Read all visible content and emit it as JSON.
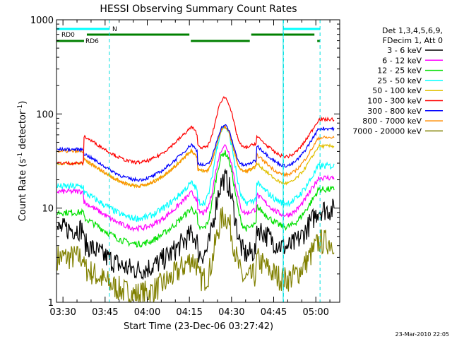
{
  "chart_data": {
    "type": "line",
    "title": "HESSI Observing Summary Count Rates",
    "xlabel": "Start Time (23-Dec-06 03:27:42)",
    "ylabel_main": "Count Rate (s",
    "ylabel_sup1": "-1",
    "ylabel_mid": " detector",
    "ylabel_sup2": "-1",
    "ylabel_end": ")",
    "y_scale": "log",
    "ylim": [
      1,
      1000
    ],
    "xlim_minutes": [
      27.7,
      101
    ],
    "x_ticks": [
      {
        "label": "03:30",
        "minute": 30
      },
      {
        "label": "03:45",
        "minute": 45
      },
      {
        "label": "04:00",
        "minute": 60
      },
      {
        "label": "04:15",
        "minute": 75
      },
      {
        "label": "04:30",
        "minute": 90
      },
      {
        "label": "04:45",
        "minute": 105
      },
      {
        "label": "05:00",
        "minute": 120
      }
    ],
    "y_ticks": [
      {
        "label": "1",
        "value": 1
      },
      {
        "label": "10",
        "value": 10
      },
      {
        "label": "100",
        "value": 100
      },
      {
        "label": "1000",
        "value": 1000
      }
    ],
    "legend": {
      "placement": "right",
      "header": [
        "Det 1,3,4,5,6,9,",
        "FDecim 1, Att 0"
      ],
      "entries": [
        {
          "label": "3 - 6 keV",
          "color": "#000000"
        },
        {
          "label": "6 - 12 keV",
          "color": "#ff00ff"
        },
        {
          "label": "12 - 25 keV",
          "color": "#00e000"
        },
        {
          "label": "25 - 50 keV",
          "color": "#00ffff"
        },
        {
          "label": "50 - 100 keV",
          "color": "#e0c000"
        },
        {
          "label": "100 - 300 keV",
          "color": "#ff0000"
        },
        {
          "label": "300 - 800 keV",
          "color": "#0000ff"
        },
        {
          "label": "800 - 7000 keV",
          "color": "#ff8c00"
        },
        {
          "label": "7000 - 20000 keV",
          "color": "#808000"
        }
      ]
    },
    "flags": [
      {
        "label": "N",
        "color": "#00ffff",
        "segments": [
          [
            27.7,
            46.5
          ],
          [
            108.5,
            121.5
          ]
        ]
      },
      {
        "label": "RD0",
        "color": "#008000",
        "segments": [
          [
            38.5,
            75
          ],
          [
            97,
            119.5
          ]
        ]
      },
      {
        "label": "RD6",
        "color": "#008000",
        "segments": [
          [
            27.7,
            37.5
          ],
          [
            75.5,
            96.5
          ],
          [
            120.5,
            121.5
          ]
        ]
      }
    ],
    "night_markers": [
      46.5,
      108.5,
      121.5
    ],
    "series_model": [
      {
        "name": "3 - 6 keV",
        "color": "#000000",
        "base": 4.0,
        "peak": 20,
        "early": 6.0,
        "late": 5.5,
        "noise": 0.35
      },
      {
        "name": "6 - 12 keV",
        "color": "#ff00ff",
        "base": 11,
        "peak": 45,
        "early": 15,
        "late": 12,
        "noise": 0.08
      },
      {
        "name": "12 - 25 keV",
        "color": "#00e000",
        "base": 7.5,
        "peak": 38,
        "early": 9,
        "late": 9,
        "noise": 0.1
      },
      {
        "name": "25 - 50 keV",
        "color": "#00ffff",
        "base": 14,
        "peak": 72,
        "early": 17,
        "late": 16,
        "noise": 0.1
      },
      {
        "name": "50 - 100 keV",
        "color": "#e0c000",
        "base": 31,
        "peak": 70,
        "early": 30,
        "late": 26,
        "noise": 0.05
      },
      {
        "name": "100 - 300 keV",
        "color": "#ff0000",
        "base": 55,
        "peak": 145,
        "early": 30,
        "late": 50,
        "noise": 0.05
      },
      {
        "name": "300 - 800 keV",
        "color": "#0000ff",
        "base": 36,
        "peak": 73,
        "early": 42,
        "late": 40,
        "noise": 0.05
      },
      {
        "name": "800 - 7000 keV",
        "color": "#ff8c00",
        "base": 31,
        "peak": 70,
        "early": 40,
        "late": 32,
        "noise": 0.05
      },
      {
        "name": "7000 - 20000 keV",
        "color": "#808000",
        "base": 2.2,
        "peak": 8,
        "early": 3.0,
        "late": 2.5,
        "noise": 0.4
      }
    ],
    "footer_date": "23-Mar-2010 22:05"
  }
}
